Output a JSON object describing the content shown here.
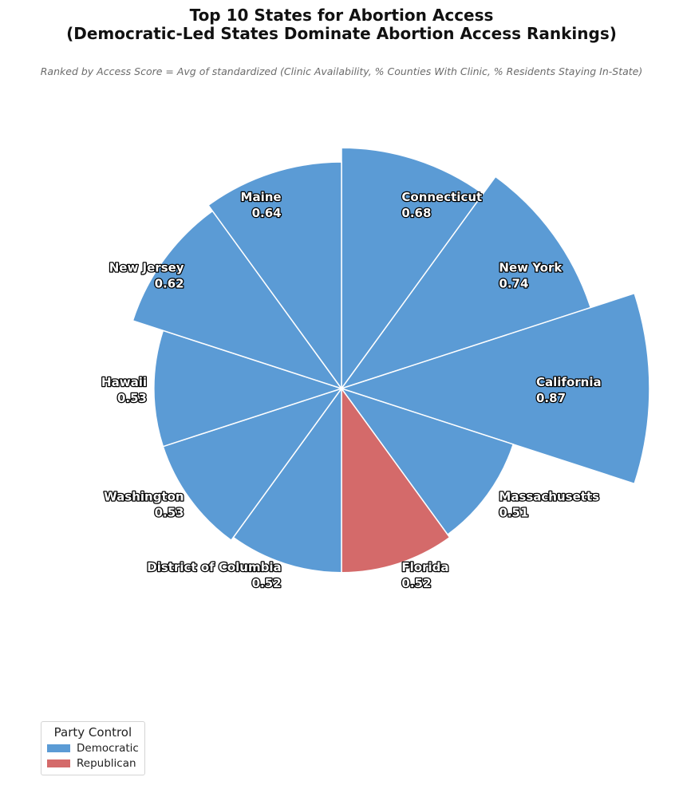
{
  "title_line1": "Top 10 States for Abortion Access",
  "title_line2": "(Democratic-Led States Dominate Abortion Access Rankings)",
  "subtitle": "Ranked by Access Score = Avg of standardized (Clinic Availability, % Counties With Clinic, % Residents Staying In-State)",
  "colors": {
    "Democratic": "#5b9bd5",
    "Republican": "#d46a6a"
  },
  "legend": {
    "title": "Party Control",
    "items": [
      {
        "label": "Democratic",
        "color": "#5b9bd5"
      },
      {
        "label": "Republican",
        "color": "#d46a6a"
      }
    ]
  },
  "chart_data": {
    "type": "polar-bar",
    "direction": "clockwise from top",
    "categories": [
      "Connecticut",
      "New York",
      "California",
      "Massachusetts",
      "Florida",
      "District of Columbia",
      "Washington",
      "Hawaii",
      "New Jersey",
      "Maine"
    ],
    "values": [
      0.68,
      0.74,
      0.87,
      0.51,
      0.52,
      0.52,
      0.53,
      0.53,
      0.62,
      0.64
    ],
    "party": [
      "Democratic",
      "Democratic",
      "Democratic",
      "Democratic",
      "Republican",
      "Democratic",
      "Democratic",
      "Democratic",
      "Democratic",
      "Democratic"
    ],
    "value_labels": [
      "0.68",
      "0.74",
      "0.87",
      "0.51",
      "0.52",
      "0.52",
      "0.53",
      "0.53",
      "0.62",
      "0.64"
    ]
  }
}
